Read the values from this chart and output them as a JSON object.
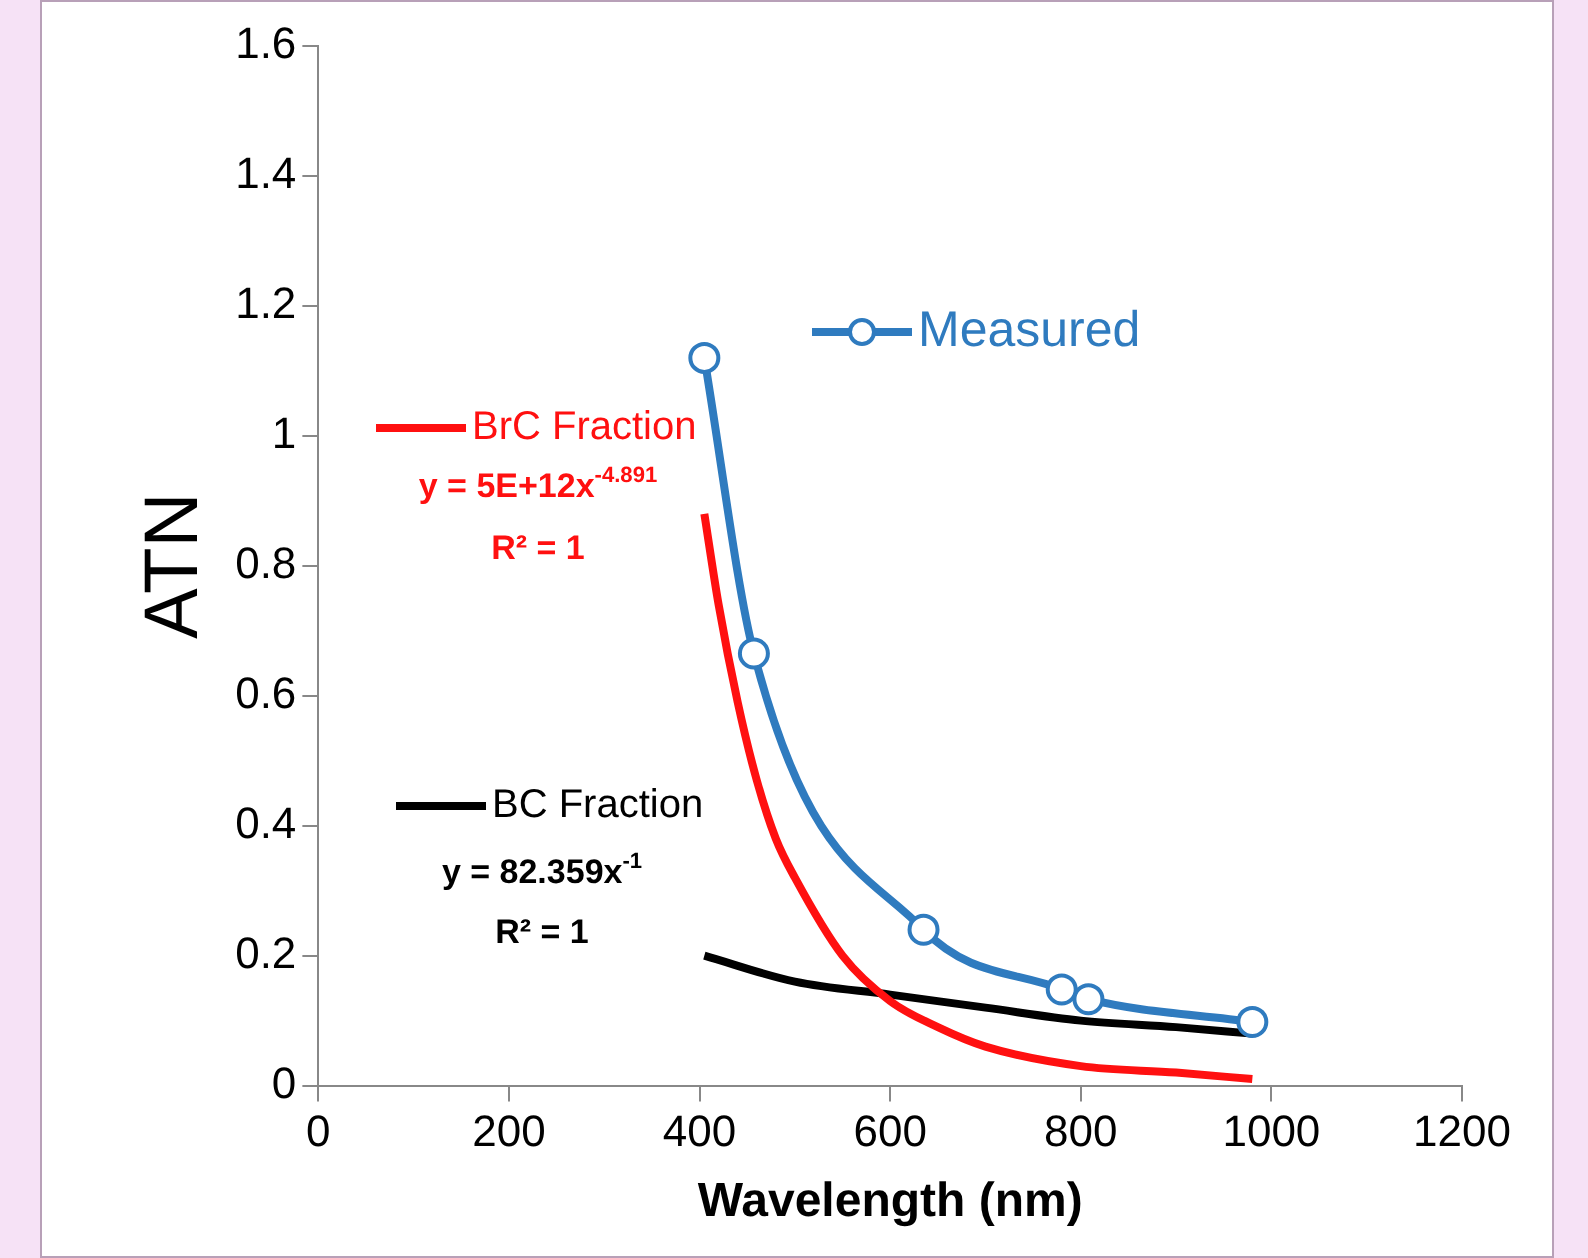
{
  "chart_data": {
    "type": "line",
    "xlabel": "Wavelength (nm)",
    "ylabel": "ATN",
    "xlim": [
      0,
      1200
    ],
    "xticks": [
      0,
      200,
      400,
      600,
      800,
      1000,
      1200
    ],
    "ylim": [
      0,
      1.6
    ],
    "yticks": [
      0,
      0.2,
      0.4,
      0.6,
      0.8,
      1,
      1.2,
      1.4,
      1.6
    ],
    "grid": false,
    "legend": "top left",
    "line_style": "solid",
    "series": [
      {
        "name": "Measured",
        "color": "#2f7bbf",
        "marker": "circle",
        "x": [
          405,
          457,
          635,
          780,
          808,
          980
        ],
        "values": [
          1.12,
          0.665,
          0.24,
          0.148,
          0.133,
          0.098
        ]
      },
      {
        "name": "BrC Fraction",
        "color": "#ff1010",
        "marker": "none",
        "x": [
          405,
          420,
          440,
          460,
          480,
          500,
          550,
          600,
          650,
          700,
          800,
          900,
          980
        ],
        "values": [
          0.88,
          0.74,
          0.59,
          0.47,
          0.38,
          0.32,
          0.2,
          0.13,
          0.09,
          0.06,
          0.03,
          0.02,
          0.01
        ]
      },
      {
        "name": "BC Fraction",
        "color": "#000000",
        "marker": "none",
        "x": [
          405,
          500,
          600,
          700,
          800,
          900,
          980
        ],
        "values": [
          0.2,
          0.16,
          0.14,
          0.12,
          0.1,
          0.09,
          0.08
        ]
      }
    ],
    "annotations": [
      "y = 5E+12x$^{-4.891}$",
      "R² = 1",
      "y = 82.359x$^{-1}$",
      "R² = 1"
    ]
  }
}
